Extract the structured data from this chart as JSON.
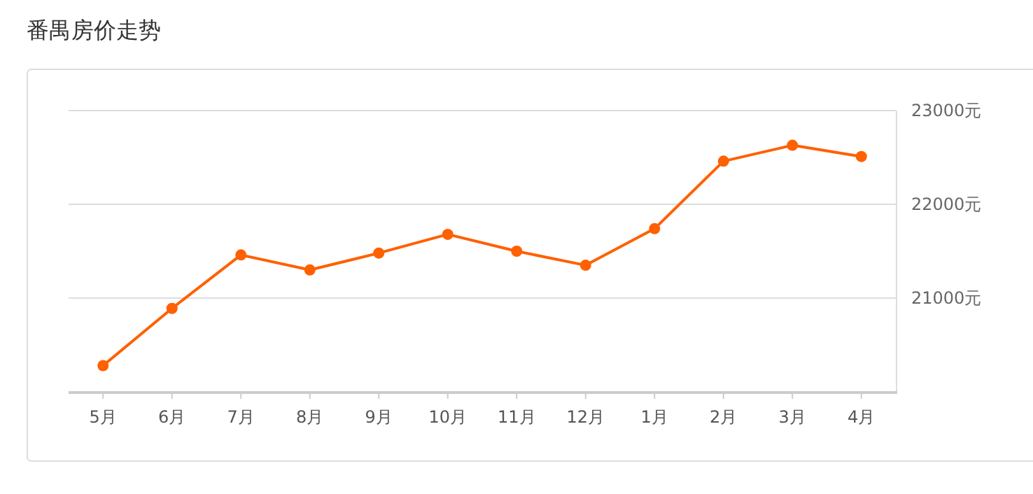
{
  "chart_data": {
    "type": "line",
    "title": "番禺房价走势",
    "categories": [
      "5月",
      "6月",
      "7月",
      "8月",
      "9月",
      "10月",
      "11月",
      "12月",
      "1月",
      "2月",
      "3月",
      "4月"
    ],
    "values": [
      20280,
      20890,
      21460,
      21300,
      21480,
      21680,
      21500,
      21350,
      21740,
      22460,
      22630,
      22510
    ],
    "color": "#ff6000",
    "ylim": [
      20000,
      23000
    ],
    "yticks": [
      {
        "value": 21000,
        "label": "21000元"
      },
      {
        "value": 22000,
        "label": "22000元"
      },
      {
        "value": 23000,
        "label": "23000元"
      }
    ],
    "grid": "y",
    "marker": "circle"
  }
}
